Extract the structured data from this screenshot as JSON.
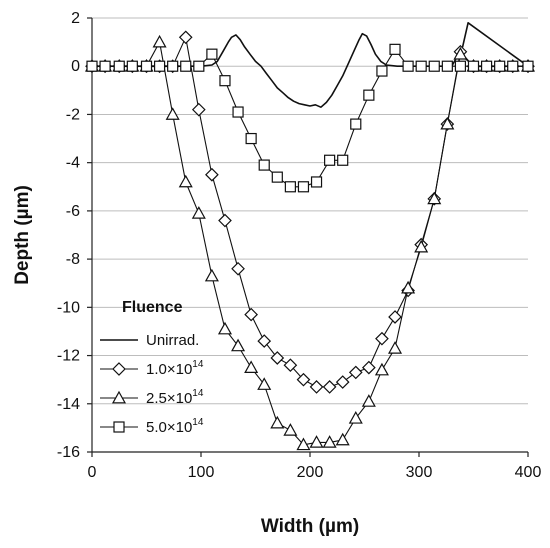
{
  "chart_data": {
    "type": "line",
    "title": "",
    "xlabel": "Width (µm)",
    "ylabel": "Depth (µm)",
    "xlim": [
      0,
      400
    ],
    "ylim": [
      -16,
      2
    ],
    "xticks": [
      0,
      100,
      200,
      300,
      400
    ],
    "yticks": [
      -16,
      -14,
      -12,
      -10,
      -8,
      -6,
      -4,
      -2,
      0,
      2
    ],
    "grid": true,
    "legend": {
      "title": "Fluence",
      "placement": "bottom-left"
    },
    "series": [
      {
        "name": "Unirrad.",
        "marker": "none",
        "x": [
          0,
          30,
          60,
          90,
          100,
          110,
          115,
          120,
          125,
          128,
          132,
          136,
          140,
          145,
          150,
          155,
          160,
          165,
          170,
          175,
          180,
          185,
          190,
          195,
          200,
          205,
          210,
          215,
          220,
          225,
          230,
          235,
          240,
          245,
          248,
          252,
          256,
          260,
          265,
          270,
          280,
          300,
          330,
          340,
          345,
          400
        ],
        "y": [
          0,
          0,
          0,
          0,
          0,
          0.05,
          0.2,
          0.6,
          1.0,
          1.2,
          1.3,
          1.1,
          0.8,
          0.5,
          0.2,
          0,
          -0.3,
          -0.6,
          -0.9,
          -1.1,
          -1.3,
          -1.45,
          -1.55,
          -1.6,
          -1.65,
          -1.6,
          -1.7,
          -1.5,
          -1.2,
          -0.8,
          -0.4,
          0.1,
          0.6,
          1.1,
          1.35,
          1.25,
          0.9,
          0.5,
          0.2,
          0.05,
          0,
          0,
          0,
          0.8,
          1.8,
          0
        ]
      },
      {
        "name": "1.0×10",
        "name_sup": "14",
        "marker": "diamond",
        "x": [
          0,
          12,
          25,
          37,
          50,
          62,
          74,
          86,
          98,
          110,
          122,
          134,
          146,
          158,
          170,
          182,
          194,
          206,
          218,
          230,
          242,
          254,
          266,
          278,
          290,
          302,
          314,
          326,
          338,
          350,
          362,
          374,
          386,
          400
        ],
        "y": [
          0,
          0,
          0,
          0,
          0,
          0,
          0,
          1.2,
          -1.8,
          -4.5,
          -6.4,
          -8.4,
          -10.3,
          -11.4,
          -12.1,
          -12.4,
          -13.0,
          -13.3,
          -13.3,
          -13.1,
          -12.7,
          -12.5,
          -11.3,
          -10.4,
          -9.3,
          -7.4,
          -5.5,
          -2.4,
          0.6,
          0,
          0,
          0,
          0,
          0
        ]
      },
      {
        "name": "2.5×10",
        "name_sup": "14",
        "marker": "triangle",
        "x": [
          0,
          12,
          25,
          37,
          50,
          62,
          74,
          86,
          98,
          110,
          122,
          134,
          146,
          158,
          170,
          182,
          194,
          206,
          218,
          230,
          242,
          254,
          266,
          278,
          290,
          302,
          314,
          326,
          338,
          350,
          362,
          374,
          386,
          400
        ],
        "y": [
          0,
          0,
          0,
          0,
          0,
          1.0,
          -2.0,
          -4.8,
          -6.1,
          -8.7,
          -10.9,
          -11.6,
          -12.5,
          -13.2,
          -14.8,
          -15.1,
          -15.7,
          -15.6,
          -15.6,
          -15.5,
          -14.6,
          -13.9,
          -12.6,
          -11.7,
          -9.2,
          -7.5,
          -5.5,
          -2.4,
          0.5,
          0,
          0,
          0,
          0,
          0
        ]
      },
      {
        "name": "5.0×10",
        "name_sup": "14",
        "marker": "square",
        "x": [
          0,
          12,
          25,
          37,
          50,
          62,
          74,
          86,
          98,
          110,
          122,
          134,
          146,
          158,
          170,
          182,
          194,
          206,
          218,
          230,
          242,
          254,
          266,
          278,
          290,
          302,
          314,
          326,
          338,
          350,
          362,
          374,
          386,
          400
        ],
        "y": [
          0,
          0,
          0,
          0,
          0,
          0,
          0,
          0,
          0,
          0.5,
          -0.6,
          -1.9,
          -3.0,
          -4.1,
          -4.6,
          -5.0,
          -5.0,
          -4.8,
          -3.9,
          -3.9,
          -2.4,
          -1.2,
          -0.2,
          0.7,
          0,
          0,
          0,
          0,
          0,
          0,
          0,
          0,
          0,
          0
        ]
      }
    ]
  }
}
